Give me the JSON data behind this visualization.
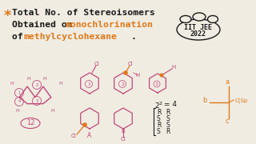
{
  "bg_color": "#f0ece2",
  "star_color": "#e07818",
  "black_color": "#1a1a1a",
  "struct_color": "#c04878",
  "title_line1": "Total No. of Stereoisomers",
  "title_line2_b": "Obtained on ",
  "title_line2_o": "monochlorination",
  "title_line3_b": "of ",
  "title_line3_o": "methylcyclohexane",
  "title_line3_b2": ".",
  "bubble_text1": "IIT JEE",
  "bubble_text2": "2022",
  "rs_col1": [
    "R",
    "S",
    "R",
    "S"
  ],
  "rs_col2": [
    "R",
    "S",
    "S",
    "R"
  ],
  "pow2_label": "2",
  "equals4": "=4"
}
